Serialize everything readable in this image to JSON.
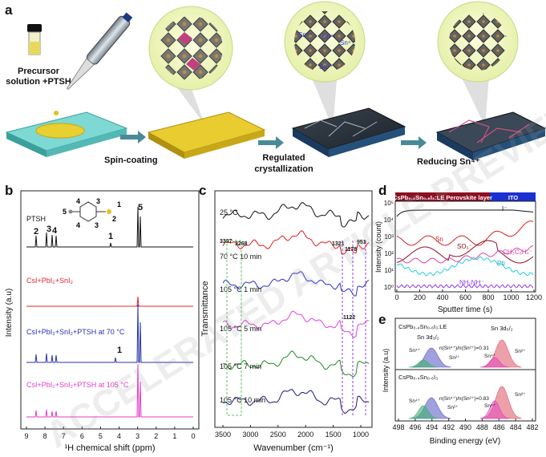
{
  "panels": {
    "a": "a",
    "b": "b",
    "c": "c",
    "d": "d",
    "e": "e"
  },
  "panel_a": {
    "precursor_l1": "Precursor",
    "precursor_l2": "solution +PTSH",
    "spin": "Spin-coating",
    "reg_l1": "Regulated",
    "reg_l2": "crystallization",
    "reducing": "Reducing Sn⁴⁺",
    "sn_ion_label": "Sn⁴⁺"
  },
  "panel_b": {
    "ylabel": "Intensity (a.u)",
    "xlabel": "¹H chemical shift (ppm)",
    "xticks": [
      "9",
      "8",
      "7",
      "6",
      "5",
      "4",
      "3",
      "2",
      "1",
      "0"
    ],
    "traces": [
      {
        "label": "PTSH",
        "color": "#111111"
      },
      {
        "label": "CsI+PbI₂+SnI₂",
        "color": "#d9282f"
      },
      {
        "label": "CsI+PbI₂+SnI₂+PTSH at 70 °C",
        "color": "#2632a8"
      },
      {
        "label": "CsI+PbI₂+SnI₂+PTSH at 105 °C",
        "color": "#e03cc8"
      }
    ],
    "peak_labels": [
      "2",
      "3",
      "4",
      "5",
      "1",
      "1"
    ],
    "mol_labels": [
      "4",
      "3",
      "5",
      "4",
      "3",
      "1",
      "2"
    ]
  },
  "panel_c": {
    "ylabel": "Transmittance",
    "xlabel": "Wavenumber (cm⁻¹)",
    "xticks": [
      "3500",
      "3000",
      "2500",
      "2000",
      "1500",
      "1000"
    ],
    "traces": [
      {
        "label": "25 °C",
        "color": "#111111"
      },
      {
        "label": "70 °C   10 min",
        "color": "#e02020"
      },
      {
        "label": "105 °C   1 min",
        "color": "#2632c8"
      },
      {
        "label": "105 °C   5 min",
        "color": "#e040e0"
      },
      {
        "label": "105 °C   7 min",
        "color": "#208a20"
      },
      {
        "label": "105 °C   10 min",
        "color": "#1a1a7a"
      }
    ],
    "peaks": [
      "3387",
      "3268",
      "1321",
      "1178",
      "951",
      "1122"
    ]
  },
  "panel_d": {
    "banner_left": "CsPb₀.₄Sn₀.₆I₃:LE Perovskite layer",
    "banner_right": "ITO",
    "ylabel": "Intensity (count)",
    "xlabel": "Sputter time (s)",
    "xticks": [
      "0",
      "200",
      "400",
      "600",
      "800",
      "1000",
      "1200"
    ],
    "yticks": [
      "10⁰",
      "10¹",
      "10²",
      "10³",
      "10⁴",
      "10⁵"
    ],
    "series": [
      {
        "label": "I⁻",
        "color": "#111111"
      },
      {
        "label": "Sn",
        "color": "#d42020"
      },
      {
        "label": "SO₂⁻",
        "color": "#8b1020"
      },
      {
        "label": "CH₃C₆H₄⁻",
        "color": "#e040a0"
      },
      {
        "label": "Pb",
        "color": "#20d0e0"
      },
      {
        "label": "NH₂NH⁻",
        "color": "#9040e0"
      }
    ]
  },
  "panel_e": {
    "ylabel": "Intensity (a.u)",
    "xlabel": "Binding energy (eV)",
    "xticks": [
      "498",
      "496",
      "494",
      "492",
      "490",
      "488",
      "486",
      "484",
      "482"
    ],
    "top": {
      "title": "CsPb₀.₄Sn₀.₆I₃:LE",
      "ratio": "n(Sn⁴⁺)/n(Sn²⁺)=0.31"
    },
    "bottom": {
      "title": "CsPb₀.₄Sn₀.₆I₃",
      "ratio": "n(Sn⁴⁺)/n(Sn²⁺)=0.83"
    },
    "sn32": "Sn 3d₃/₂",
    "sn52": "Sn 3d₅/₂",
    "sn4": "Sn⁴⁺",
    "sn2": "Sn²⁺"
  },
  "watermark": "ACCELERATED ARTICLE PREVIEW"
}
